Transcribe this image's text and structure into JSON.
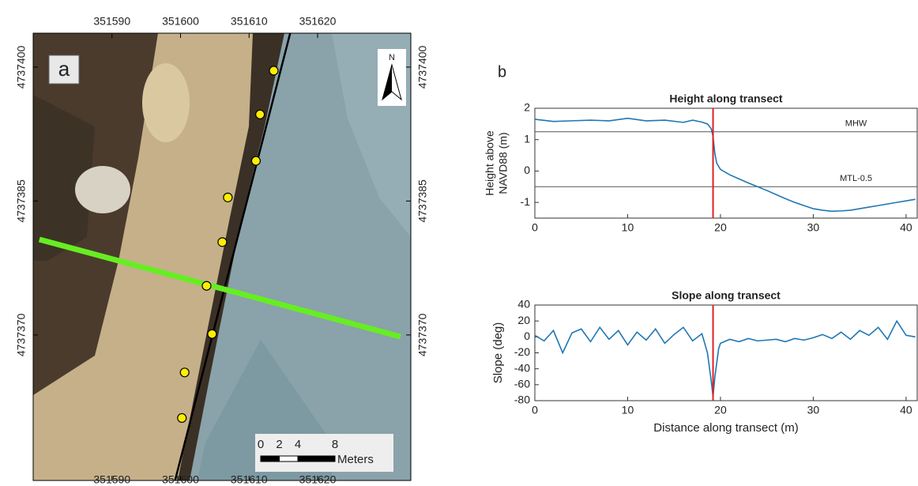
{
  "chart_data": [
    {
      "type": "map",
      "panel_label": "a",
      "north_label": "N",
      "xlim": [
        351578.5,
        351633.6
      ],
      "ylim": [
        4737353.7,
        4737403.8
      ],
      "xticks": [
        351590,
        351600,
        351610,
        351620
      ],
      "yticks": [
        4737370,
        4737385,
        4737400
      ],
      "points": {
        "color": "#ffee00",
        "x": [
          351613.6,
          351611.6,
          351611.0,
          351606.9,
          351606.1,
          351603.8,
          351604.6,
          351600.6,
          351600.2
        ],
        "y": [
          4737399.6,
          4737394.7,
          4737389.5,
          4737385.4,
          4737380.4,
          4737375.5,
          4737370.1,
          4737365.8,
          4737360.7
        ]
      },
      "shoreline": {
        "color": "#000000",
        "x": [
          351616.0,
          351599.2
        ],
        "y": [
          4737403.8,
          4737353.7
        ]
      },
      "transect": {
        "color": "#66ee22",
        "x": [
          351579.4,
          351632.1
        ],
        "y": [
          4737380.7,
          4737369.8
        ]
      },
      "scale_bar": {
        "ticks": [
          0,
          2,
          4,
          8
        ],
        "unit": "Meters"
      }
    },
    {
      "type": "line",
      "panel_label": "b",
      "title": "Height along transect",
      "ylabel": [
        "Height above",
        "NAVD88 (m)"
      ],
      "xlim": [
        0,
        41.2
      ],
      "ylim": [
        -1.5,
        2
      ],
      "xticks": [
        0,
        10,
        20,
        30,
        40
      ],
      "yticks": [
        -1,
        0,
        1,
        2
      ],
      "x": [
        0,
        2,
        4,
        6,
        8,
        10,
        12,
        14,
        16,
        17,
        18,
        18.6,
        19,
        19.2,
        19.4,
        19.6,
        20,
        21,
        22,
        23,
        24,
        25,
        26,
        27,
        28,
        29,
        30,
        31,
        32,
        33,
        34,
        35,
        36,
        37,
        38,
        39,
        40,
        41
      ],
      "values": [
        1.65,
        1.58,
        1.6,
        1.62,
        1.6,
        1.68,
        1.6,
        1.62,
        1.55,
        1.62,
        1.56,
        1.5,
        1.35,
        1.1,
        0.55,
        0.25,
        0.05,
        -0.12,
        -0.25,
        -0.38,
        -0.5,
        -0.62,
        -0.75,
        -0.88,
        -1.0,
        -1.1,
        -1.2,
        -1.25,
        -1.28,
        -1.27,
        -1.25,
        -1.2,
        -1.15,
        -1.1,
        -1.05,
        -1.0,
        -0.95,
        -0.9
      ],
      "color": "#1f77b4",
      "reference_lines": [
        {
          "label": "MHW",
          "value": 1.25
        },
        {
          "label": "MTL-0.5",
          "value": -0.5
        }
      ],
      "marker_x": 19.2,
      "marker_color": "#e02020"
    },
    {
      "type": "line",
      "title": "Slope along transect",
      "ylabel": "Slope (deg)",
      "xlabel": "Distance along transect (m)",
      "xlim": [
        0,
        41.2
      ],
      "ylim": [
        -80,
        40
      ],
      "xticks": [
        0,
        10,
        20,
        30,
        40
      ],
      "yticks": [
        -80,
        -60,
        -40,
        -20,
        0,
        20,
        40
      ],
      "x": [
        0,
        1,
        2,
        3,
        4,
        5,
        6,
        7,
        8,
        9,
        10,
        11,
        12,
        13,
        14,
        15,
        16,
        17,
        18,
        18.6,
        19,
        19.2,
        19.4,
        19.8,
        20,
        21,
        22,
        23,
        24,
        25,
        26,
        27,
        28,
        29,
        30,
        31,
        32,
        33,
        34,
        35,
        36,
        37,
        38,
        39,
        40,
        41
      ],
      "values": [
        2,
        -5,
        8,
        -20,
        5,
        10,
        -6,
        12,
        -3,
        8,
        -10,
        6,
        -4,
        10,
        -8,
        3,
        12,
        -5,
        4,
        -20,
        -55,
        -75,
        -50,
        -15,
        -8,
        -3,
        -6,
        -2,
        -5,
        -4,
        -3,
        -6,
        -2,
        -4,
        -1,
        3,
        -2,
        6,
        -3,
        8,
        2,
        12,
        -3,
        20,
        2,
        0
      ],
      "color": "#1f77b4",
      "marker_x": 19.2,
      "marker_color": "#e02020"
    }
  ]
}
